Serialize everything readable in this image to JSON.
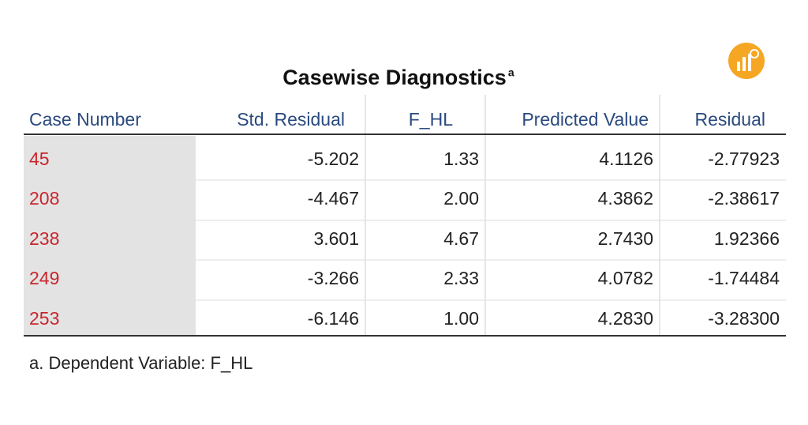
{
  "title": "Casewise Diagnostics",
  "title_footnote_mark": "a",
  "table": {
    "headers": [
      "Case Number",
      "Std. Residual",
      "F_HL",
      "Predicted Value",
      "Residual"
    ],
    "rows": [
      [
        "45",
        "-5.202",
        "1.33",
        "4.1126",
        "-2.77923"
      ],
      [
        "208",
        "-4.467",
        "2.00",
        "4.3862",
        "-2.38617"
      ],
      [
        "238",
        "3.601",
        "4.67",
        "2.7430",
        "1.92366"
      ],
      [
        "249",
        "-3.266",
        "2.33",
        "4.0782",
        "-1.74484"
      ],
      [
        "253",
        "-6.146",
        "1.00",
        "4.2830",
        "-3.28300"
      ]
    ]
  },
  "footnote": "a. Dependent Variable: F_HL"
}
